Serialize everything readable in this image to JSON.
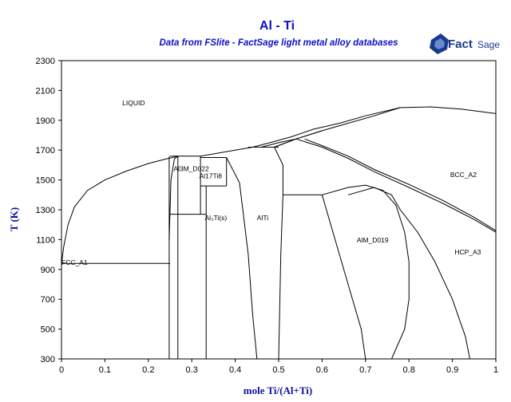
{
  "chart_data": {
    "type": "line",
    "title": "Al - Ti",
    "subtitle": "Data from FSlite - FactSage light metal alloy databases",
    "xlabel": "mole Ti/(Al+Ti)",
    "ylabel": "T (K)",
    "xlim": [
      0,
      1
    ],
    "ylim": [
      300,
      2300
    ],
    "x_ticks": [
      "0",
      "0.1",
      "0.2",
      "0.3",
      "0.4",
      "0.5",
      "0.6",
      "0.7",
      "0.8",
      "0.9",
      "1"
    ],
    "y_ticks": [
      "300",
      "500",
      "700",
      "900",
      "1100",
      "1300",
      "1500",
      "1700",
      "1900",
      "2100",
      "2300"
    ],
    "region_labels": [
      {
        "text": "LIQUID",
        "x": 0.14,
        "y": 2000
      },
      {
        "text": "Al3M_D022",
        "x": 0.258,
        "y": 1560
      },
      {
        "text": "Al17Ti8",
        "x": 0.317,
        "y": 1510
      },
      {
        "text": "Al₃Ti(s)",
        "x": 0.33,
        "y": 1230
      },
      {
        "text": "AlTi",
        "x": 0.45,
        "y": 1230
      },
      {
        "text": "BCC_A2",
        "x": 0.895,
        "y": 1520
      },
      {
        "text": "AlM_D019",
        "x": 0.68,
        "y": 1080
      },
      {
        "text": "HCP_A3",
        "x": 0.905,
        "y": 1000
      },
      {
        "text": "FCC_A1",
        "x": 0.0,
        "y": 930
      }
    ],
    "grid": false,
    "series": [
      {
        "values": [
          [
            0.0,
            700
          ],
          [
            0.0,
            933
          ]
        ]
      },
      {
        "values": [
          [
            0.0,
            933
          ],
          [
            0.005,
            1050
          ],
          [
            0.015,
            1200
          ],
          [
            0.03,
            1320
          ],
          [
            0.06,
            1430
          ],
          [
            0.1,
            1500
          ],
          [
            0.15,
            1560
          ],
          [
            0.2,
            1610
          ],
          [
            0.24,
            1640
          ],
          [
            0.27,
            1660
          ]
        ]
      },
      {
        "values": [
          [
            0.0,
            940
          ],
          [
            0.25,
            940
          ]
        ]
      },
      {
        "values": [
          [
            0.248,
            300
          ],
          [
            0.248,
            1660
          ]
        ]
      },
      {
        "values": [
          [
            0.248,
            1100
          ],
          [
            0.25,
            1300
          ],
          [
            0.252,
            1500
          ],
          [
            0.26,
            1640
          ],
          [
            0.268,
            1660
          ]
        ]
      },
      {
        "values": [
          [
            0.268,
            300
          ],
          [
            0.268,
            1660
          ]
        ]
      },
      {
        "values": [
          [
            0.25,
            1660
          ],
          [
            0.32,
            1660
          ]
        ]
      },
      {
        "values": [
          [
            0.25,
            1270
          ],
          [
            0.333,
            1270
          ]
        ]
      },
      {
        "values": [
          [
            0.32,
            1270
          ],
          [
            0.32,
            1660
          ]
        ]
      },
      {
        "values": [
          [
            0.333,
            300
          ],
          [
            0.333,
            1460
          ]
        ]
      },
      {
        "values": [
          [
            0.32,
            1650
          ],
          [
            0.38,
            1650
          ]
        ]
      },
      {
        "values": [
          [
            0.32,
            1460
          ],
          [
            0.38,
            1460
          ]
        ]
      },
      {
        "values": [
          [
            0.38,
            1460
          ],
          [
            0.38,
            1650
          ]
        ]
      },
      {
        "values": [
          [
            0.32,
            1660
          ],
          [
            0.4,
            1700
          ],
          [
            0.44,
            1720
          ]
        ]
      },
      {
        "values": [
          [
            0.38,
            1650
          ],
          [
            0.41,
            1480
          ],
          [
            0.43,
            1000
          ],
          [
            0.44,
            600
          ],
          [
            0.45,
            300
          ]
        ]
      },
      {
        "values": [
          [
            0.44,
            1720
          ],
          [
            0.49,
            1720
          ]
        ]
      },
      {
        "values": [
          [
            0.49,
            1720
          ],
          [
            0.51,
            1600
          ],
          [
            0.51,
            1400
          ],
          [
            0.505,
            1000
          ],
          [
            0.5,
            300
          ]
        ]
      },
      {
        "values": [
          [
            0.5,
            1720
          ],
          [
            0.5,
            1720
          ],
          [
            0.46,
            1720
          ],
          [
            0.43,
            1720
          ]
        ]
      },
      {
        "values": [
          [
            0.46,
            1720
          ],
          [
            0.5,
            1750
          ],
          [
            0.54,
            1775
          ]
        ]
      },
      {
        "values": [
          [
            0.49,
            1720
          ],
          [
            0.54,
            1775
          ]
        ]
      },
      {
        "values": [
          [
            0.54,
            1775
          ],
          [
            0.6,
            1830
          ],
          [
            0.66,
            1880
          ],
          [
            0.72,
            1930
          ],
          [
            0.78,
            1985
          ],
          [
            0.85,
            1990
          ],
          [
            0.92,
            1975
          ],
          [
            1.0,
            1945
          ]
        ]
      },
      {
        "values": [
          [
            0.49,
            1720
          ],
          [
            0.54,
            1775
          ],
          [
            0.6,
            1830
          ]
        ]
      },
      {
        "values": [
          [
            0.44,
            1720
          ],
          [
            0.48,
            1750
          ],
          [
            0.53,
            1790
          ],
          [
            0.58,
            1840
          ],
          [
            0.64,
            1880
          ],
          [
            0.7,
            1930
          ],
          [
            0.78,
            1985
          ]
        ]
      },
      {
        "values": [
          [
            0.56,
            1775
          ],
          [
            0.6,
            1730
          ],
          [
            0.66,
            1660
          ],
          [
            0.72,
            1570
          ],
          [
            0.8,
            1470
          ],
          [
            0.88,
            1360
          ],
          [
            0.95,
            1250
          ],
          [
            1.0,
            1160
          ]
        ]
      },
      {
        "values": [
          [
            0.54,
            1775
          ],
          [
            0.6,
            1720
          ],
          [
            0.66,
            1645
          ],
          [
            0.72,
            1555
          ],
          [
            0.8,
            1450
          ],
          [
            0.88,
            1340
          ],
          [
            0.95,
            1235
          ],
          [
            1.0,
            1150
          ]
        ]
      },
      {
        "values": [
          [
            0.51,
            1400
          ],
          [
            0.6,
            1400
          ]
        ]
      },
      {
        "values": [
          [
            0.6,
            1400
          ],
          [
            0.66,
            1450
          ],
          [
            0.7,
            1465
          ],
          [
            0.74,
            1430
          ],
          [
            0.77,
            1330
          ],
          [
            0.79,
            1150
          ],
          [
            0.8,
            950
          ],
          [
            0.8,
            700
          ],
          [
            0.79,
            500
          ],
          [
            0.76,
            300
          ]
        ]
      },
      {
        "values": [
          [
            0.6,
            1400
          ],
          [
            0.63,
            1100
          ],
          [
            0.66,
            800
          ],
          [
            0.69,
            500
          ],
          [
            0.7,
            300
          ]
        ]
      },
      {
        "values": [
          [
            0.66,
            1400
          ],
          [
            0.72,
            1450
          ],
          [
            0.76,
            1400
          ],
          [
            0.78,
            1300
          ],
          [
            0.82,
            1150
          ],
          [
            0.86,
            950
          ],
          [
            0.9,
            700
          ],
          [
            0.93,
            450
          ],
          [
            0.94,
            300
          ]
        ]
      }
    ]
  },
  "logo": {
    "brand_text": "Fact",
    "brand_text_2": "Sage"
  },
  "colors": {
    "title": "#1010c8",
    "axis_title": "#1010a0",
    "line": "#000000",
    "logo": "#1a3a8a"
  }
}
